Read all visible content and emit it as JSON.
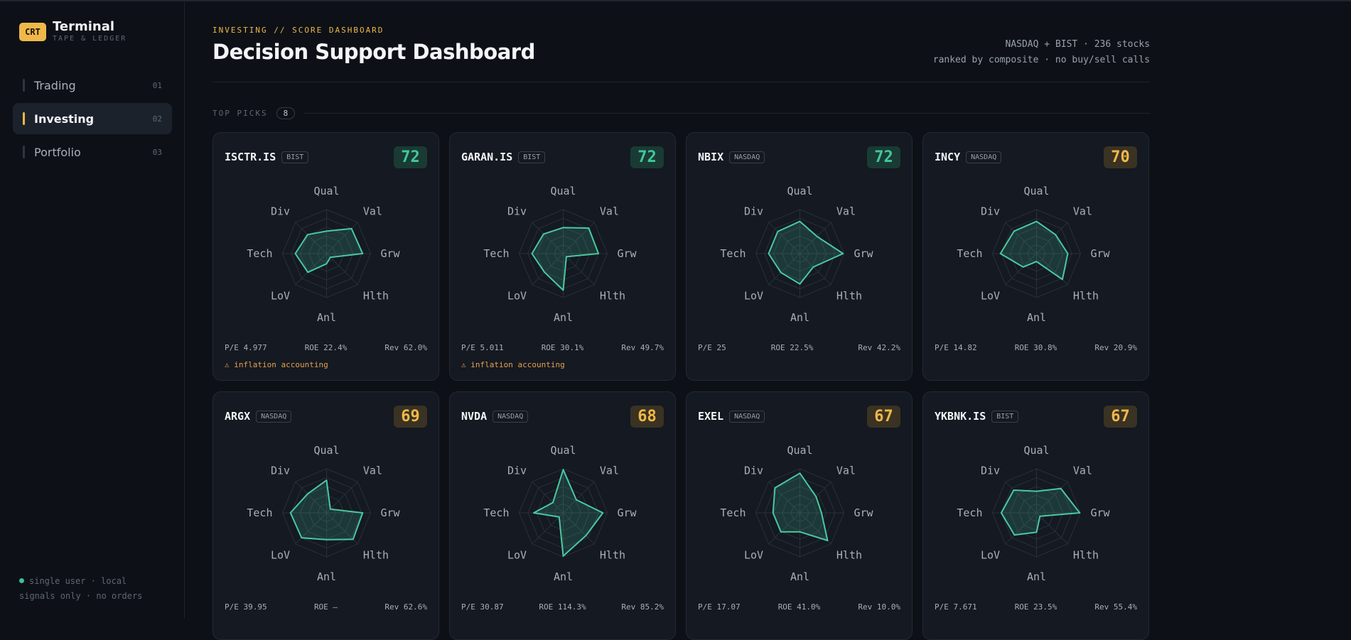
{
  "brand": {
    "badge": "CRT",
    "title": "Terminal",
    "subtitle": "TAPE & LEDGER"
  },
  "nav": [
    {
      "label": "Trading",
      "num": "01",
      "active": false
    },
    {
      "label": "Investing",
      "num": "02",
      "active": true
    },
    {
      "label": "Portfolio",
      "num": "03",
      "active": false
    }
  ],
  "footer": {
    "line1": "single user · local",
    "line2": "signals only · no orders"
  },
  "header": {
    "kicker": "INVESTING // SCORE DASHBOARD",
    "title": "Decision Support Dashboard",
    "meta_line1": "NASDAQ + BIST · 236 stocks",
    "meta_line2": "ranked by composite · no buy/sell calls"
  },
  "section": {
    "label": "TOP PICKS",
    "count": "8"
  },
  "axes": [
    "Qual",
    "Val",
    "Grw",
    "Hlth",
    "Anl",
    "LoV",
    "Tech",
    "Div"
  ],
  "colors": {
    "accent": "#f0b849",
    "radar_stroke": "#49c9a0",
    "score_high_text": "#43c79d",
    "score_high_bg": "#193b34",
    "score_mid_text": "#f0b849",
    "score_mid_bg": "#3a3222",
    "warning": "#e8a04a"
  },
  "cards": [
    {
      "ticker": "ISCTR.IS",
      "exchange": "BIST",
      "score": "72",
      "tier": "high",
      "axis_scores": [
        0.51,
        0.8,
        0.82,
        0.12,
        0.23,
        0.6,
        0.71,
        0.61
      ],
      "pe": "P/E 4.977",
      "roe": "ROE 22.4%",
      "rev": "Rev 62.0%",
      "warning": "⚠ inflation accounting"
    },
    {
      "ticker": "GARAN.IS",
      "exchange": "BIST",
      "score": "72",
      "tier": "high",
      "axis_scores": [
        0.59,
        0.82,
        0.8,
        0.1,
        0.83,
        0.6,
        0.71,
        0.63
      ],
      "pe": "P/E 5.011",
      "roe": "ROE 30.1%",
      "rev": "Rev 49.7%",
      "warning": "⚠ inflation accounting"
    },
    {
      "ticker": "NBIX",
      "exchange": "NASDAQ",
      "score": "72",
      "tier": "high",
      "axis_scores": [
        0.73,
        0.55,
        0.98,
        0.43,
        0.69,
        0.61,
        0.71,
        0.71
      ],
      "pe": "P/E 25",
      "roe": "ROE 22.5%",
      "rev": "Rev 42.2%",
      "warning": ""
    },
    {
      "ticker": "INCY",
      "exchange": "NASDAQ",
      "score": "70",
      "tier": "mid",
      "axis_scores": [
        0.73,
        0.61,
        0.71,
        0.83,
        0.18,
        0.43,
        0.82,
        0.72
      ],
      "pe": "P/E 14.82",
      "roe": "ROE 30.8%",
      "rev": "Rev 20.9%",
      "warning": ""
    },
    {
      "ticker": "ARGX",
      "exchange": "NASDAQ",
      "score": "69",
      "tier": "mid",
      "axis_scores": [
        0.74,
        0.12,
        0.82,
        0.85,
        0.61,
        0.8,
        0.82,
        0.61
      ],
      "pe": "P/E 39.95",
      "roe": "ROE —",
      "rev": "Rev 62.6%",
      "warning": ""
    },
    {
      "ticker": "NVDA",
      "exchange": "NASDAQ",
      "score": "68",
      "tier": "mid",
      "axis_scores": [
        0.98,
        0.42,
        0.9,
        0.73,
        0.98,
        0.13,
        0.67,
        0.33
      ],
      "pe": "P/E 30.87",
      "roe": "ROE 114.3%",
      "rev": "Rev 85.2%",
      "warning": ""
    },
    {
      "ticker": "EXEL",
      "exchange": "NASDAQ",
      "score": "67",
      "tier": "mid",
      "axis_scores": [
        0.9,
        0.52,
        0.49,
        0.89,
        0.43,
        0.61,
        0.61,
        0.8
      ],
      "pe": "P/E 17.07",
      "roe": "ROE 41.0%",
      "rev": "Rev 10.0%",
      "warning": ""
    },
    {
      "ticker": "YKBNK.IS",
      "exchange": "BIST",
      "score": "67",
      "tier": "mid",
      "axis_scores": [
        0.49,
        0.78,
        0.98,
        0.11,
        0.44,
        0.71,
        0.8,
        0.73
      ],
      "pe": "P/E 7.671",
      "roe": "ROE 23.5%",
      "rev": "Rev 55.4%",
      "warning": ""
    }
  ]
}
